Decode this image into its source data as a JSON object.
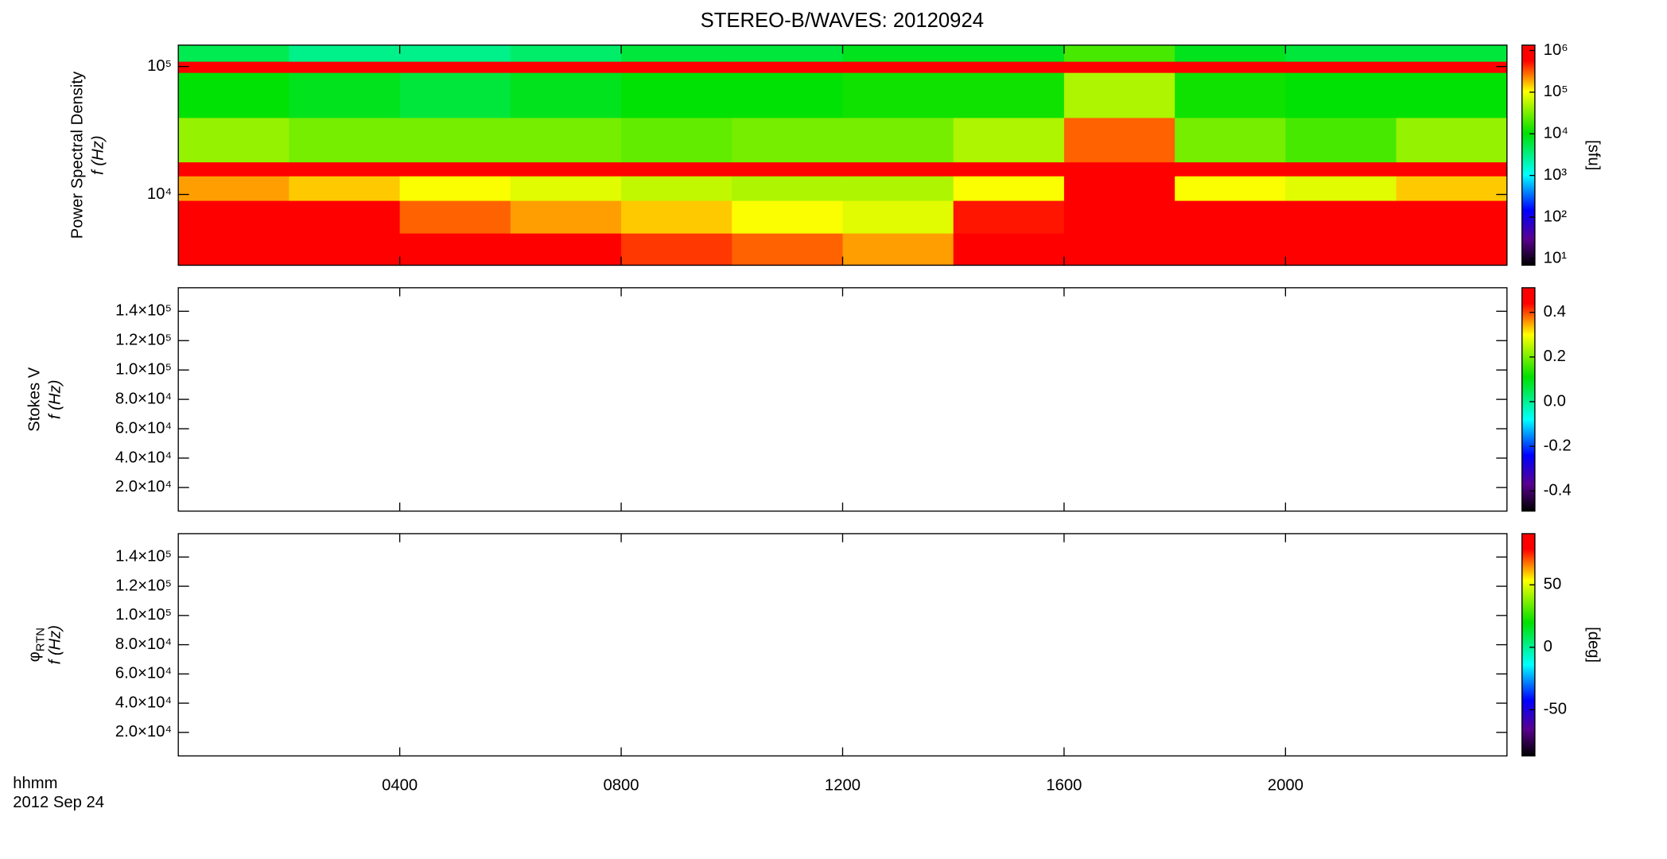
{
  "chart_data": [
    {
      "type": "heatmap",
      "title": "STEREO-B/WAVES: 20120924",
      "ylabel": "Power Spectral Density",
      "ylabel2": "f (Hz)",
      "zlabel": "[sfu]",
      "xlim": [
        0,
        24
      ],
      "xticks": [
        {
          "value": 4,
          "label": "0400"
        },
        {
          "value": 8,
          "label": "0800"
        },
        {
          "value": 12,
          "label": "1200"
        },
        {
          "value": 16,
          "label": "1600"
        },
        {
          "value": 20,
          "label": "2000"
        }
      ],
      "ylog": true,
      "ylim": [
        2800,
        147000
      ],
      "yticks": [
        {
          "value": 10000,
          "label": "10⁴"
        },
        {
          "value": 100000,
          "label": "10⁵"
        }
      ],
      "zlog": true,
      "zlim": [
        7,
        1350000
      ],
      "zticks": [
        {
          "value": 10,
          "label": "10¹"
        },
        {
          "value": 100,
          "label": "10²"
        },
        {
          "value": 1000,
          "label": "10³"
        },
        {
          "value": 10000,
          "label": "10⁴"
        },
        {
          "value": 100000,
          "label": "10⁵"
        },
        {
          "value": 1000000,
          "label": "10⁶"
        }
      ],
      "xbins": [
        0,
        2,
        4,
        6,
        8,
        10,
        12,
        14,
        16,
        18,
        20,
        22,
        24
      ],
      "ybins": [
        2800,
        5000,
        9000,
        14000,
        18000,
        40000,
        90000,
        110000,
        147000
      ],
      "z": [
        [
          1000000,
          1000000,
          800000,
          600000,
          400000,
          300000,
          200000,
          700000,
          1000000,
          1000000,
          1000000,
          1000000
        ],
        [
          900000,
          800000,
          300000,
          200000,
          150000,
          100000,
          80000,
          500000,
          1000000,
          800000,
          600000,
          900000
        ],
        [
          200000,
          150000,
          100000,
          80000,
          60000,
          50000,
          50000,
          100000,
          1000000,
          100000,
          80000,
          150000
        ],
        [
          1000000,
          1000000,
          1000000,
          1000000,
          1000000,
          1000000,
          1000000,
          1000000,
          1000000,
          1000000,
          1000000,
          1000000
        ],
        [
          40000,
          30000,
          30000,
          30000,
          25000,
          30000,
          30000,
          50000,
          300000,
          30000,
          20000,
          40000
        ],
        [
          10000,
          8000,
          6000,
          8000,
          10000,
          10000,
          12000,
          12000,
          50000,
          12000,
          10000,
          10000
        ],
        [
          1000000,
          1000000,
          1000000,
          1000000,
          1000000,
          1000000,
          1000000,
          1000000,
          1000000,
          1000000,
          1000000,
          1000000
        ],
        [
          5000,
          3000,
          3000,
          4000,
          6000,
          6000,
          8000,
          8000,
          20000,
          8000,
          6000,
          6000
        ]
      ]
    },
    {
      "type": "heatmap",
      "ylabel": "Stokes V",
      "ylabel2": "f (Hz)",
      "xlim": [
        0,
        24
      ],
      "xticks": [
        {
          "value": 4,
          "label": "0400"
        },
        {
          "value": 8,
          "label": "0800"
        },
        {
          "value": 12,
          "label": "1200"
        },
        {
          "value": 16,
          "label": "1600"
        },
        {
          "value": 20,
          "label": "2000"
        }
      ],
      "ylim": [
        3900,
        156000
      ],
      "yticks": [
        {
          "value": 20000,
          "label": "2.0×10⁴"
        },
        {
          "value": 40000,
          "label": "4.0×10⁴"
        },
        {
          "value": 60000,
          "label": "6.0×10⁴"
        },
        {
          "value": 80000,
          "label": "8.0×10⁴"
        },
        {
          "value": 100000,
          "label": "1.0×10⁵"
        },
        {
          "value": 120000,
          "label": "1.2×10⁵"
        },
        {
          "value": 140000,
          "label": "1.4×10⁵"
        }
      ],
      "zlim": [
        -0.49,
        0.51
      ],
      "zticks": [
        -0.4,
        -0.2,
        {
          "value": 0,
          "label": "0.0"
        },
        0.2,
        0.4
      ]
    },
    {
      "type": "heatmap",
      "ylabel": "φ",
      "ylabel_sub": "RTN",
      "ylabel2": "f (Hz)",
      "zlabel": "[deg]",
      "xlabel": "hhmm",
      "date": "2012 Sep 24",
      "xlim": [
        0,
        24
      ],
      "xticks": [
        {
          "value": 4,
          "label": "0400"
        },
        {
          "value": 8,
          "label": "0800"
        },
        {
          "value": 12,
          "label": "1200"
        },
        {
          "value": 16,
          "label": "1600"
        },
        {
          "value": 20,
          "label": "2000"
        }
      ],
      "ylim": [
        3900,
        156000
      ],
      "yticks": [
        {
          "value": 20000,
          "label": "2.0×10⁴"
        },
        {
          "value": 40000,
          "label": "4.0×10⁴"
        },
        {
          "value": 60000,
          "label": "6.0×10⁴"
        },
        {
          "value": 80000,
          "label": "8.0×10⁴"
        },
        {
          "value": 100000,
          "label": "1.0×10⁵"
        },
        {
          "value": 120000,
          "label": "1.2×10⁵"
        },
        {
          "value": 140000,
          "label": "1.4×10⁵"
        }
      ],
      "zlim": [
        -87,
        91
      ],
      "zticks": [
        -50,
        0,
        50
      ]
    }
  ]
}
